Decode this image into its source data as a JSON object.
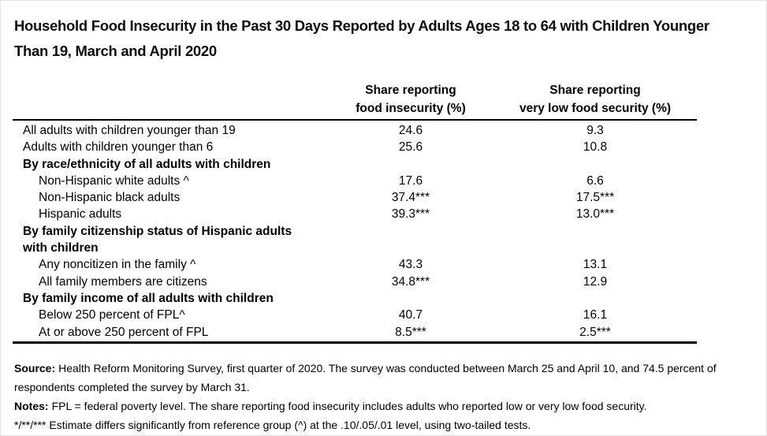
{
  "page": {
    "title": "Household Food Insecurity in the Past 30 Days Reported by Adults Ages 18 to 64 with Children Younger\nThan 19, March and April 2020"
  },
  "table": {
    "header": {
      "share_food_insecurity": "Share reporting\nfood insecurity (%)",
      "share_very_low_food_security": "Share reporting\nvery low food security (%)"
    },
    "rows": [
      {
        "label": "All adults with children younger than 19",
        "food_insecurity": "24.6",
        "very_low_food_security": "9.3"
      },
      {
        "label": "Adults with children younger than 6",
        "food_insecurity": "25.6",
        "very_low_food_security": "10.8"
      },
      {
        "label": "By race/ethnicity of all adults with children",
        "food_insecurity": "",
        "very_low_food_security": ""
      },
      {
        "label": "Non-Hispanic white adults ^",
        "food_insecurity": "17.6",
        "very_low_food_security": "6.6"
      },
      {
        "label": "Non-Hispanic black adults",
        "food_insecurity": "37.4***",
        "very_low_food_security": "17.5***"
      },
      {
        "label": "Hispanic adults",
        "food_insecurity": "39.3***",
        "very_low_food_security": "13.0***"
      },
      {
        "label": "By family citizenship status of Hispanic adults\nwith children",
        "food_insecurity": "",
        "very_low_food_security": ""
      },
      {
        "label": "Any noncitizen in the family ^",
        "food_insecurity": "43.3",
        "very_low_food_security": "13.1"
      },
      {
        "label": "All family members are citizens",
        "food_insecurity": "34.8***",
        "very_low_food_security": "12.9"
      },
      {
        "label": "By family income of all adults with children",
        "food_insecurity": "",
        "very_low_food_security": ""
      },
      {
        "label": "Below 250 percent of FPL^",
        "food_insecurity": "40.7",
        "very_low_food_security": "16.1"
      },
      {
        "label": "At or above 250 percent of FPL",
        "food_insecurity": "8.5***",
        "very_low_food_security": "2.5***"
      }
    ]
  },
  "footer": {
    "source_label": "Source:",
    "source_text": "Health Reform Monitoring Survey, first quarter of 2020. The survey was conducted between March 25 and April 10, and 74.5 percent of respondents completed the survey by March 31.",
    "notes_label": "Notes:",
    "notes_text": "FPL = federal poverty level. The share reporting food insecurity includes adults who reported low or very low food security.",
    "significance_text": "*/**/*** Estimate differs significantly from reference group (^) at the .10/.05/.01 level, using two-tailed tests."
  },
  "colors": {
    "text": "#000000",
    "background": "#ffffff",
    "rule": "#000000"
  }
}
